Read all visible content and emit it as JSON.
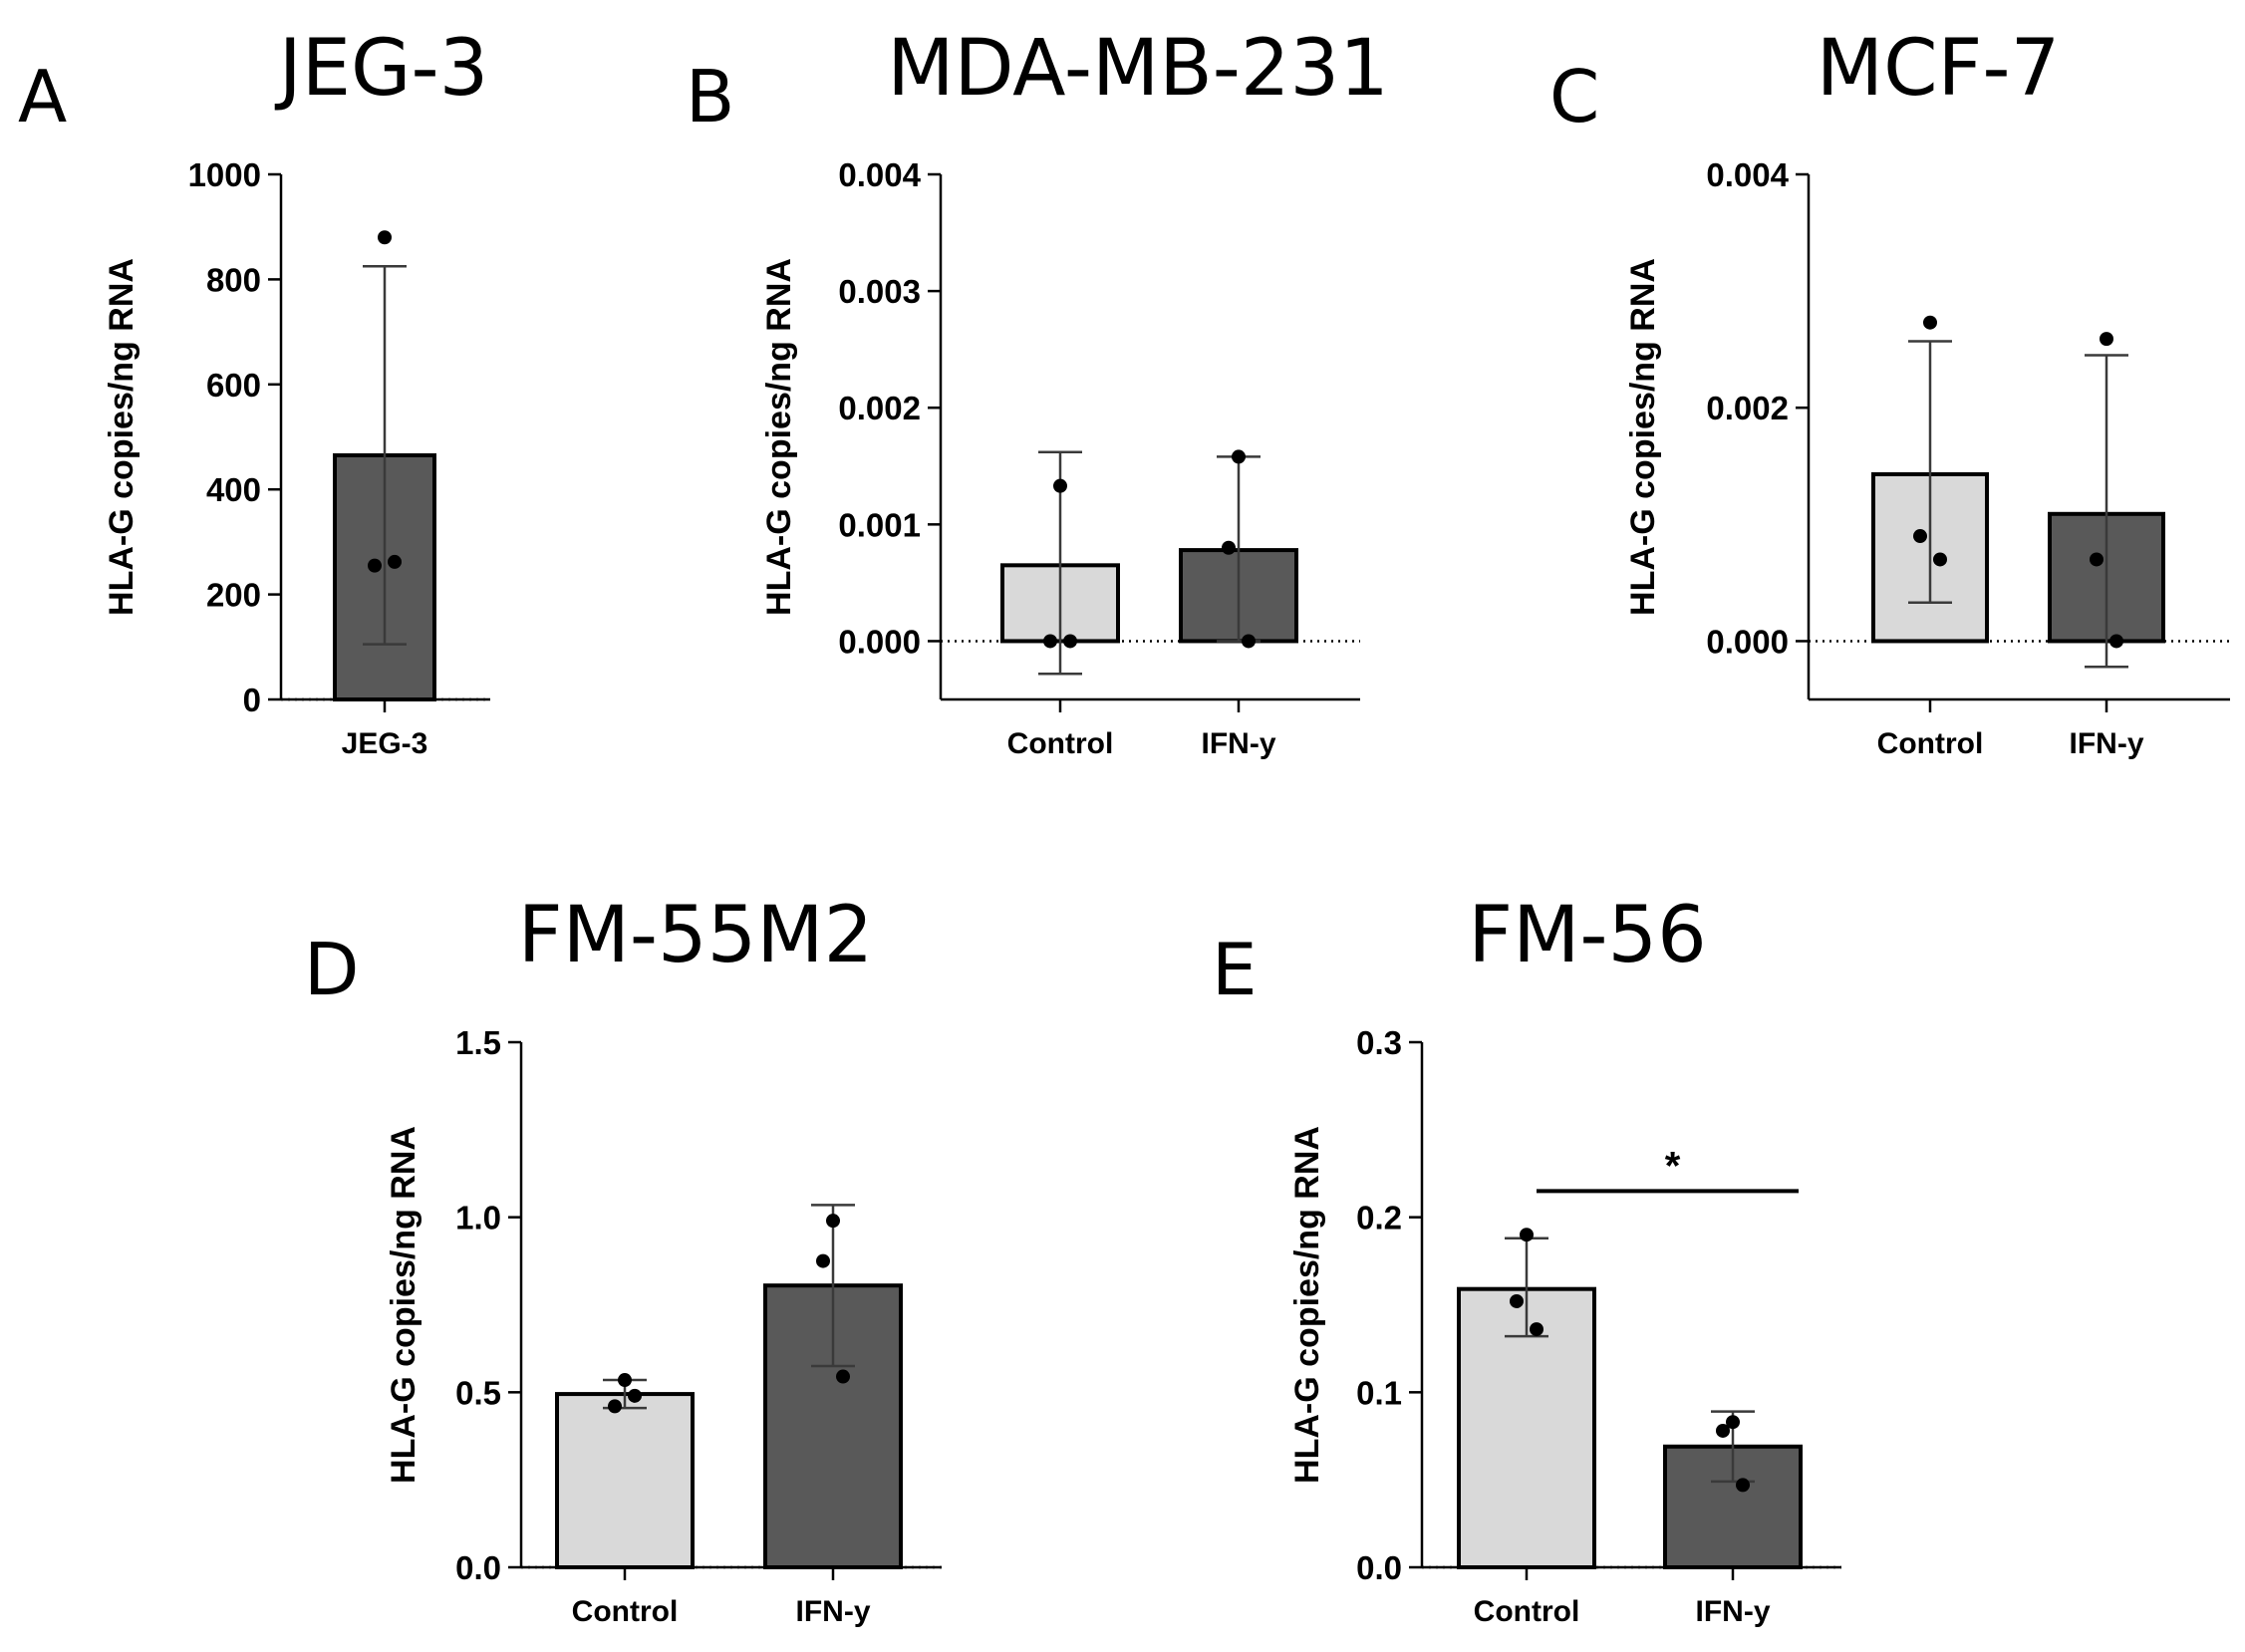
{
  "figure": {
    "colors": {
      "control": "#d9d9d9",
      "ifn": "#595959",
      "jeg": "#595959",
      "axis": "#000000",
      "error": "#3a3a3a"
    }
  },
  "chart_data": [
    {
      "panel": "A",
      "title": "JEG-3",
      "type": "bar",
      "ylabel": "HLA-G copies/ng RNA",
      "ylim": [
        0,
        1000
      ],
      "yticks": [
        0,
        200,
        400,
        600,
        800,
        1000
      ],
      "ytick_labels": [
        "0",
        "200",
        "400",
        "600",
        "800",
        "1000"
      ],
      "categories": [
        "JEG-3"
      ],
      "series": [
        {
          "name": "JEG-3",
          "mean": 465,
          "err_low": 105,
          "err_high": 825,
          "points": [
            880,
            255,
            262
          ],
          "color_key": "jeg"
        }
      ]
    },
    {
      "panel": "B",
      "title": "MDA-MB-231",
      "type": "bar",
      "ylabel": "HLA-G copies/ng RNA",
      "ylim": [
        -0.0005,
        0.004
      ],
      "yticks": [
        0,
        0.001,
        0.002,
        0.003,
        0.004
      ],
      "ytick_labels": [
        "0.000",
        "0.001",
        "0.002",
        "0.003",
        "0.004"
      ],
      "categories": [
        "Control",
        "IFN-y"
      ],
      "series": [
        {
          "name": "Control",
          "mean": 0.00065,
          "err_low": -0.00028,
          "err_high": 0.00162,
          "points": [
            0.00133,
            0.0,
            0.0
          ],
          "color_key": "control"
        },
        {
          "name": "IFN-y",
          "mean": 0.00078,
          "err_low": 0.0,
          "err_high": 0.00158,
          "points": [
            0.00158,
            0.0008,
            0.0
          ],
          "color_key": "ifn"
        }
      ]
    },
    {
      "panel": "C",
      "title": "MCF-7",
      "type": "bar",
      "ylabel": "HLA-G copies/ng RNA",
      "ylim": [
        -0.0005,
        0.004
      ],
      "yticks": [
        0,
        0.002,
        0.004
      ],
      "ytick_labels": [
        "0.000",
        "0.002",
        "0.004"
      ],
      "categories": [
        "Control",
        "IFN-y"
      ],
      "series": [
        {
          "name": "Control",
          "mean": 0.00143,
          "err_low": 0.00033,
          "err_high": 0.00257,
          "points": [
            0.00273,
            0.0009,
            0.0007
          ],
          "color_key": "control"
        },
        {
          "name": "IFN-y",
          "mean": 0.00109,
          "err_low": -0.00022,
          "err_high": 0.00245,
          "points": [
            0.00259,
            0.0007,
            0.0
          ],
          "color_key": "ifn"
        }
      ]
    },
    {
      "panel": "D",
      "title": "FM-55M2",
      "type": "bar",
      "ylabel": "HLA-G copies/ng RNA",
      "ylim": [
        0,
        1.5
      ],
      "yticks": [
        0,
        0.5,
        1.0,
        1.5
      ],
      "ytick_labels": [
        "0.0",
        "0.5",
        "1.0",
        "1.5"
      ],
      "categories": [
        "Control",
        "IFN-y"
      ],
      "series": [
        {
          "name": "Control",
          "mean": 0.495,
          "err_low": 0.455,
          "err_high": 0.535,
          "points": [
            0.535,
            0.46,
            0.49
          ],
          "color_key": "control"
        },
        {
          "name": "IFN-y",
          "mean": 0.805,
          "err_low": 0.575,
          "err_high": 1.035,
          "points": [
            0.99,
            0.875,
            0.545
          ],
          "color_key": "ifn"
        }
      ]
    },
    {
      "panel": "E",
      "title": "FM-56",
      "type": "bar",
      "ylabel": "HLA-G copies/ng RNA",
      "ylim": [
        0,
        0.3
      ],
      "yticks": [
        0,
        0.1,
        0.2,
        0.3
      ],
      "ytick_labels": [
        "0.0",
        "0.1",
        "0.2",
        "0.3"
      ],
      "categories": [
        "Control",
        "IFN-y"
      ],
      "series": [
        {
          "name": "Control",
          "mean": 0.159,
          "err_low": 0.132,
          "err_high": 0.188,
          "points": [
            0.19,
            0.152,
            0.136
          ],
          "color_key": "control"
        },
        {
          "name": "IFN-y",
          "mean": 0.069,
          "err_low": 0.049,
          "err_high": 0.089,
          "points": [
            0.083,
            0.078,
            0.047
          ],
          "color_key": "ifn"
        }
      ],
      "annotation": {
        "text": "*",
        "between": [
          "Control",
          "IFN-y"
        ],
        "y": 0.215
      }
    }
  ]
}
